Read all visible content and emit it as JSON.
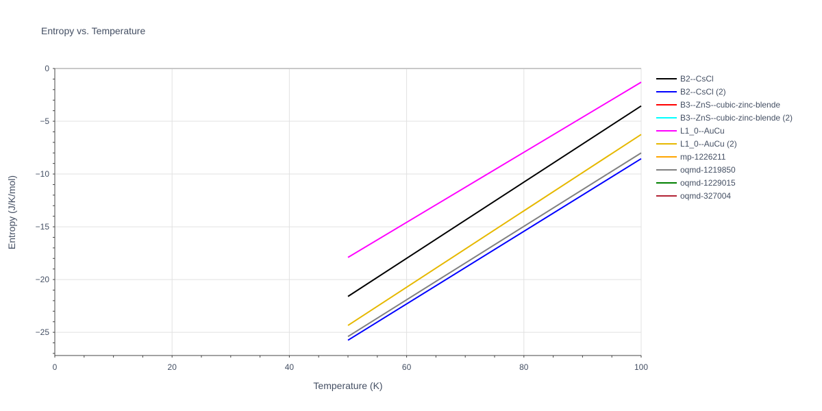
{
  "chart_data": {
    "type": "line",
    "title": "Entropy vs. Temperature",
    "xlabel": "Temperature (K)",
    "ylabel": "Entropy (J/K/mol)",
    "xlim": [
      0,
      100
    ],
    "ylim": [
      -27.2,
      0
    ],
    "x_ticks": [
      0,
      20,
      40,
      60,
      80,
      100
    ],
    "y_ticks": [
      0,
      -5,
      -10,
      -15,
      -20,
      -25
    ],
    "x_tick_labels": [
      "0",
      "20",
      "40",
      "60",
      "80",
      "100"
    ],
    "y_tick_labels": [
      "0",
      "−5",
      "−10",
      "−15",
      "−20",
      "−25"
    ],
    "grid": true,
    "legend_position": "right",
    "series": [
      {
        "name": "B2--CsCl",
        "color": "#000000",
        "x": [
          50,
          100
        ],
        "y": [
          -21.6,
          -3.55
        ]
      },
      {
        "name": "B2--CsCl (2)",
        "color": "#0000ff",
        "x": [
          50,
          100
        ],
        "y": [
          -25.75,
          -8.55
        ]
      },
      {
        "name": "B3--ZnS--cubic-zinc-blende",
        "color": "#ff0000",
        "x": [],
        "y": []
      },
      {
        "name": "B3--ZnS--cubic-zinc-blende (2)",
        "color": "#00ffff",
        "x": [],
        "y": []
      },
      {
        "name": "L1_0--AuCu",
        "color": "#ff00ff",
        "x": [
          50,
          100
        ],
        "y": [
          -17.9,
          -1.3
        ]
      },
      {
        "name": "L1_0--AuCu (2)",
        "color": "#e6b800",
        "x": [
          50,
          100
        ],
        "y": [
          -24.35,
          -6.25
        ]
      },
      {
        "name": "mp-1226211",
        "color": "#ffa500",
        "x": [],
        "y": []
      },
      {
        "name": "oqmd-1219850",
        "color": "#808080",
        "x": [
          50,
          100
        ],
        "y": [
          -25.4,
          -8.0
        ]
      },
      {
        "name": "oqmd-1229015",
        "color": "#008000",
        "x": [],
        "y": []
      },
      {
        "name": "oqmd-327004",
        "color": "#b22234",
        "x": [],
        "y": []
      }
    ]
  }
}
